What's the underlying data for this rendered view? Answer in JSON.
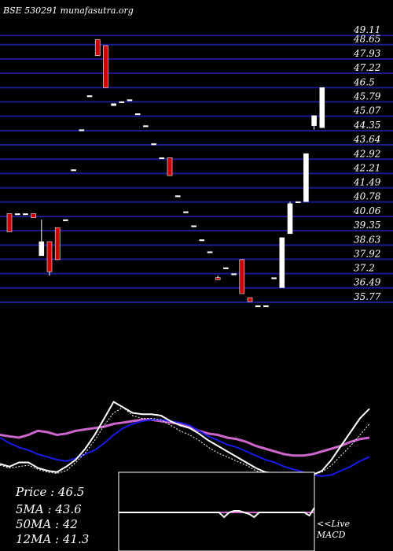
{
  "header": {
    "source": "BSE 530291 munafasutra.org"
  },
  "info": {
    "price": "Price   : 46.5",
    "ma5": "5MA : 43.6",
    "ma50": "50MA : 42",
    "ma12": "12MA : 41.3"
  },
  "macd": {
    "live": "<<Live",
    "label": "MACD"
  },
  "colors": {
    "background": "#000000",
    "gridline": "#1a1a8c",
    "up_candle": "#ffffff",
    "down_candle": "#cc0000",
    "ma_blue": "#1a1ae6",
    "ma_purple": "#cc66cc",
    "ma_white": "#ffffff"
  },
  "chart_data": [
    {
      "type": "candlestick",
      "price_levels": [
        "49.11",
        "48.65",
        "47.93",
        "47.22",
        "46.5",
        "45.79",
        "45.07",
        "44.35",
        "43.64",
        "42.92",
        "42.21",
        "41.49",
        "40.78",
        "40.06",
        "39.35",
        "38.63",
        "37.92",
        "37.2",
        "36.49",
        "35.77"
      ],
      "ylim": [
        35.77,
        49.11
      ],
      "candles": [
        {
          "o": 40.2,
          "h": 40.2,
          "l": 39.3,
          "c": 39.3
        },
        {
          "o": 40.2,
          "h": 40.2,
          "l": 40.2,
          "c": 40.2
        },
        {
          "o": 40.2,
          "h": 40.2,
          "l": 40.2,
          "c": 40.2
        },
        {
          "o": 40.2,
          "h": 40.2,
          "l": 40.0,
          "c": 40.0
        },
        {
          "o": 38.1,
          "h": 39.9,
          "l": 38.1,
          "c": 38.8
        },
        {
          "o": 38.8,
          "h": 38.8,
          "l": 37.1,
          "c": 37.3
        },
        {
          "o": 39.5,
          "h": 39.5,
          "l": 37.9,
          "c": 37.9
        },
        {
          "o": 39.9,
          "h": 39.9,
          "l": 39.9,
          "c": 39.9
        },
        {
          "o": 42.4,
          "h": 42.4,
          "l": 42.4,
          "c": 42.4
        },
        {
          "o": 44.4,
          "h": 44.4,
          "l": 44.4,
          "c": 44.4
        },
        {
          "o": 46.1,
          "h": 46.1,
          "l": 46.1,
          "c": 46.1
        },
        {
          "o": 48.9,
          "h": 48.9,
          "l": 48.1,
          "c": 48.1
        },
        {
          "o": 48.6,
          "h": 48.6,
          "l": 46.5,
          "c": 46.5
        },
        {
          "o": 45.6,
          "h": 45.7,
          "l": 45.6,
          "c": 45.7
        },
        {
          "o": 45.8,
          "h": 45.8,
          "l": 45.8,
          "c": 45.8
        },
        {
          "o": 45.9,
          "h": 45.9,
          "l": 45.9,
          "c": 45.9
        },
        {
          "o": 45.2,
          "h": 45.2,
          "l": 45.2,
          "c": 45.2
        },
        {
          "o": 44.6,
          "h": 44.6,
          "l": 44.6,
          "c": 44.6
        },
        {
          "o": 43.7,
          "h": 43.7,
          "l": 43.7,
          "c": 43.7
        },
        {
          "o": 43.0,
          "h": 43.0,
          "l": 43.0,
          "c": 43.0
        },
        {
          "o": 43.0,
          "h": 43.0,
          "l": 42.1,
          "c": 42.1
        },
        {
          "o": 41.1,
          "h": 41.1,
          "l": 41.1,
          "c": 41.1
        },
        {
          "o": 40.3,
          "h": 40.3,
          "l": 40.3,
          "c": 40.3
        },
        {
          "o": 39.6,
          "h": 39.6,
          "l": 39.6,
          "c": 39.6
        },
        {
          "o": 38.9,
          "h": 38.9,
          "l": 38.9,
          "c": 38.9
        },
        {
          "o": 38.3,
          "h": 38.3,
          "l": 38.3,
          "c": 38.3
        },
        {
          "o": 37.0,
          "h": 37.1,
          "l": 36.9,
          "c": 36.9
        },
        {
          "o": 37.5,
          "h": 37.5,
          "l": 37.5,
          "c": 37.5
        },
        {
          "o": 37.2,
          "h": 37.2,
          "l": 37.2,
          "c": 37.2
        },
        {
          "o": 37.9,
          "h": 37.9,
          "l": 36.2,
          "c": 36.2
        },
        {
          "o": 36.0,
          "h": 36.0,
          "l": 35.8,
          "c": 35.8
        },
        {
          "o": 35.6,
          "h": 35.6,
          "l": 35.6,
          "c": 35.6
        },
        {
          "o": 35.6,
          "h": 35.6,
          "l": 35.6,
          "c": 35.6
        },
        {
          "o": 37.0,
          "h": 37.0,
          "l": 37.0,
          "c": 37.0
        },
        {
          "o": 36.5,
          "h": 39.0,
          "l": 36.5,
          "c": 39.0
        },
        {
          "o": 39.2,
          "h": 40.8,
          "l": 39.2,
          "c": 40.7
        },
        {
          "o": 40.8,
          "h": 40.8,
          "l": 40.8,
          "c": 40.8
        },
        {
          "o": 40.8,
          "h": 43.2,
          "l": 40.8,
          "c": 43.2
        },
        {
          "o": 44.6,
          "h": 45.1,
          "l": 44.4,
          "c": 45.1
        },
        {
          "o": 44.5,
          "h": 46.5,
          "l": 44.5,
          "c": 46.5
        }
      ]
    },
    {
      "type": "line",
      "series": [
        {
          "values": [
            30,
            29,
            28,
            30,
            33,
            32,
            30,
            31,
            33,
            34,
            35,
            36,
            38,
            39,
            40,
            41,
            41,
            40,
            39,
            38,
            36,
            33,
            31,
            30,
            28,
            27,
            25,
            22,
            20,
            18,
            16,
            15,
            15,
            16,
            18,
            20,
            22,
            25,
            27,
            28
          ]
        },
        {
          "values": [
            28,
            24,
            21,
            19,
            16,
            14,
            12,
            11,
            13,
            16,
            19,
            24,
            30,
            35,
            38,
            40,
            41,
            41,
            40,
            39,
            37,
            33,
            29,
            26,
            23,
            21,
            18,
            15,
            12,
            10,
            7,
            5,
            3,
            1,
            0,
            1,
            4,
            7,
            11,
            14
          ]
        },
        {
          "values": [
            9,
            7,
            10,
            10,
            6,
            4,
            3,
            7,
            12,
            20,
            30,
            42,
            54,
            50,
            46,
            45,
            45,
            44,
            40,
            37,
            35,
            31,
            26,
            22,
            18,
            14,
            10,
            6,
            3,
            2,
            1,
            1,
            0,
            1,
            4,
            12,
            22,
            32,
            42,
            49
          ]
        },
        {
          "values": [
            8,
            6,
            7,
            8,
            5,
            3,
            2,
            4,
            10,
            17,
            26,
            37,
            46,
            50,
            44,
            42,
            42,
            41,
            37,
            33,
            30,
            26,
            21,
            17,
            14,
            11,
            8,
            4,
            2,
            1,
            1,
            0,
            0,
            1,
            3,
            8,
            15,
            22,
            30,
            38
          ]
        }
      ]
    },
    {
      "type": "line",
      "series": [
        {
          "values": [
            0,
            0,
            0,
            0,
            0,
            0,
            0,
            0,
            0,
            0,
            0,
            0,
            0,
            0,
            0,
            0,
            0,
            0,
            0,
            0,
            0,
            0,
            0,
            0,
            0,
            0,
            0,
            0,
            0,
            0,
            0,
            0,
            0,
            0,
            0,
            0,
            0,
            0,
            0,
            0
          ]
        },
        {
          "values": [
            0,
            0,
            0,
            0,
            0,
            0,
            0,
            0,
            0,
            0,
            0,
            0,
            0,
            0,
            0,
            0,
            0,
            0,
            0,
            0,
            0,
            -3,
            0,
            1,
            1,
            0,
            -1,
            -3,
            0,
            0,
            0,
            0,
            0,
            0,
            0,
            0,
            0,
            0,
            -2,
            3
          ]
        }
      ]
    }
  ]
}
